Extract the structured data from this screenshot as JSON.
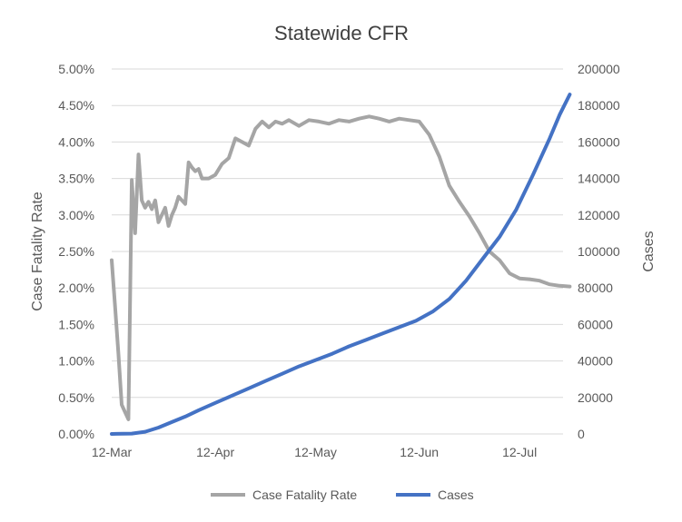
{
  "chart_data": {
    "type": "line",
    "title": "Statewide CFR",
    "ylabel": "Case Fatality Rate",
    "y2label": "Cases",
    "x_ticks": [
      "12-Mar",
      "12-Apr",
      "12-May",
      "12-Jun",
      "12-Jul"
    ],
    "x_tick_days": [
      0,
      31,
      61,
      92,
      122
    ],
    "x_range": [
      0,
      135
    ],
    "y_ticks": [
      "0.00%",
      "0.50%",
      "1.00%",
      "1.50%",
      "2.00%",
      "2.50%",
      "3.00%",
      "3.50%",
      "4.00%",
      "4.50%",
      "5.00%"
    ],
    "ylim": [
      0,
      0.05
    ],
    "y2_ticks": [
      "0",
      "20000",
      "40000",
      "60000",
      "80000",
      "100000",
      "120000",
      "140000",
      "160000",
      "180000",
      "200000"
    ],
    "y2lim": [
      0,
      200000
    ],
    "grid": true,
    "legend_position": "bottom",
    "series": [
      {
        "name": "Case Fatality Rate",
        "axis": "left",
        "color": "#A5A5A5",
        "x": [
          "12-Mar",
          "13-Mar",
          "14-Mar",
          "15-Mar",
          "16-Mar",
          "17-Mar",
          "18-Mar",
          "19-Mar",
          "20-Mar",
          "21-Mar",
          "22-Mar",
          "23-Mar",
          "24-Mar",
          "25-Mar",
          "26-Mar",
          "27-Mar",
          "28-Mar",
          "29-Mar",
          "30-Mar",
          "31-Mar",
          "1-Apr",
          "3-Apr",
          "4-Apr",
          "5-Apr",
          "6-Apr",
          "7-Apr",
          "8-Apr",
          "10-Apr",
          "12-Apr",
          "14-Apr",
          "16-Apr",
          "18-Apr",
          "20-Apr",
          "22-Apr",
          "24-Apr",
          "26-Apr",
          "28-Apr",
          "30-Apr",
          "2-May",
          "4-May",
          "7-May",
          "10-May",
          "13-May",
          "16-May",
          "19-May",
          "22-May",
          "25-May",
          "28-May",
          "31-May",
          "3-Jun",
          "6-Jun",
          "9-Jun",
          "12-Jun",
          "15-Jun",
          "18-Jun",
          "21-Jun",
          "24-Jun",
          "27-Jun",
          "30-Jun",
          "3-Jul",
          "6-Jul",
          "9-Jul",
          "12-Jul",
          "15-Jul",
          "18-Jul",
          "21-Jul",
          "24-Jul",
          "27-Jul"
        ],
        "values": [
          0.0238,
          0.0175,
          0.011,
          0.004,
          0.003,
          0.002,
          0.0348,
          0.0275,
          0.0383,
          0.032,
          0.031,
          0.0318,
          0.0308,
          0.032,
          0.029,
          0.03,
          0.031,
          0.0285,
          0.03,
          0.031,
          0.0325,
          0.0315,
          0.0372,
          0.0365,
          0.036,
          0.0363,
          0.035,
          0.035,
          0.0355,
          0.037,
          0.0378,
          0.0405,
          0.04,
          0.0395,
          0.0418,
          0.0428,
          0.042,
          0.0428,
          0.0425,
          0.043,
          0.0422,
          0.043,
          0.0428,
          0.0425,
          0.043,
          0.0428,
          0.0432,
          0.0435,
          0.0432,
          0.0428,
          0.0432,
          0.043,
          0.0428,
          0.041,
          0.038,
          0.034,
          0.0318,
          0.0298,
          0.0275,
          0.025,
          0.0238,
          0.022,
          0.0213,
          0.0212,
          0.021,
          0.0205,
          0.0203,
          0.0202
        ]
      },
      {
        "name": "Cases",
        "axis": "right",
        "color": "#4472C4",
        "x": [
          "12-Mar",
          "18-Mar",
          "22-Mar",
          "26-Mar",
          "30-Mar",
          "3-Apr",
          "7-Apr",
          "12-Apr",
          "17-Apr",
          "22-Apr",
          "27-Apr",
          "2-May",
          "7-May",
          "12-May",
          "17-May",
          "22-May",
          "27-May",
          "1-Jun",
          "6-Jun",
          "11-Jun",
          "16-Jun",
          "21-Jun",
          "26-Jun",
          "1-Jul",
          "6-Jul",
          "11-Jul",
          "16-Jul",
          "21-Jul",
          "24-Jul",
          "27-Jul"
        ],
        "values": [
          0,
          200,
          1200,
          3500,
          6500,
          9500,
          13000,
          17000,
          21000,
          25000,
          29000,
          33000,
          37000,
          40500,
          44000,
          48000,
          51500,
          55000,
          58500,
          62000,
          67000,
          74000,
          84000,
          96000,
          108000,
          123000,
          142000,
          162000,
          175000,
          186000
        ]
      }
    ]
  }
}
